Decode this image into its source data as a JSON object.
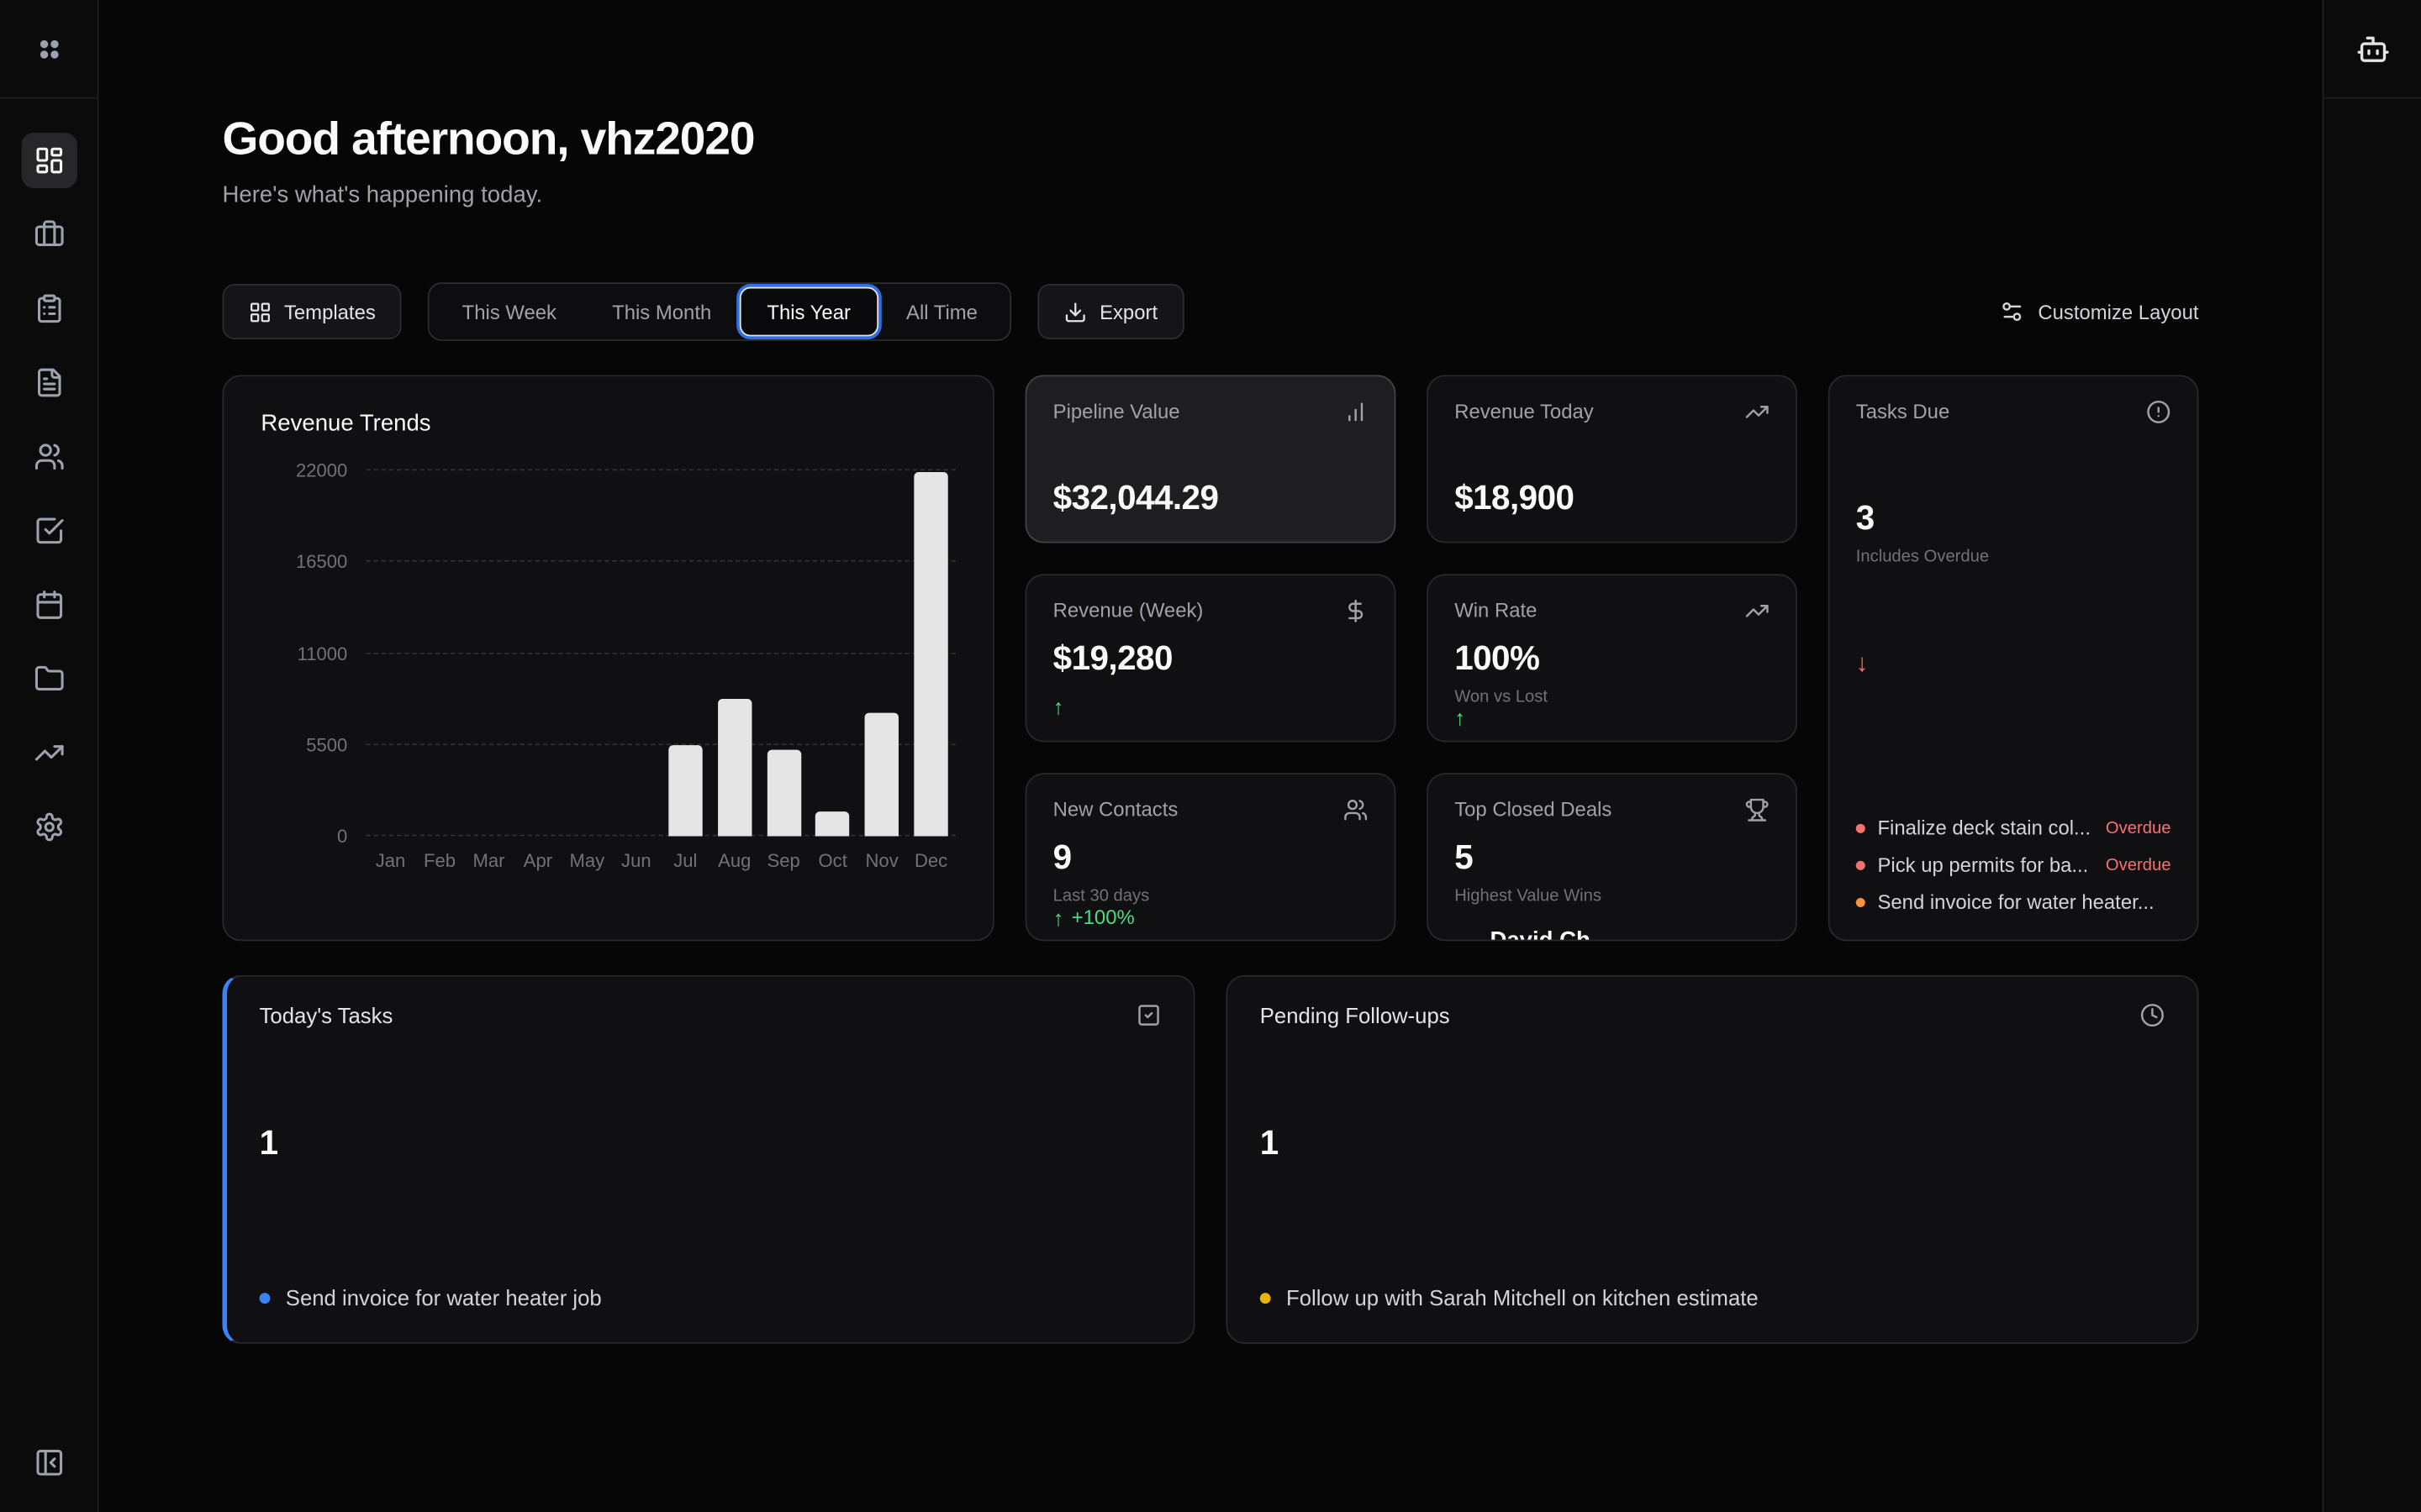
{
  "colors": {
    "accent_blue": "#3b82f6",
    "green": "#4ade80",
    "red": "#f87171",
    "orange": "#fb923c",
    "yellow": "#eab308",
    "bar": "#e5e5e5"
  },
  "sidebar": {
    "items": [
      {
        "icon": "layout-dashboard",
        "active": true
      },
      {
        "icon": "briefcase",
        "active": false
      },
      {
        "icon": "clipboard-list",
        "active": false
      },
      {
        "icon": "file-text",
        "active": false
      },
      {
        "icon": "users",
        "active": false
      },
      {
        "icon": "check-square",
        "active": false
      },
      {
        "icon": "calendar",
        "active": false
      },
      {
        "icon": "folder",
        "active": false
      },
      {
        "icon": "trending-up",
        "active": false
      },
      {
        "icon": "settings",
        "active": false
      }
    ],
    "footer_icon": "panel-left-collapse"
  },
  "right_rail": {
    "top_icon": "bot"
  },
  "header": {
    "greeting": "Good afternoon, vhz2020",
    "subtitle": "Here's what's happening today."
  },
  "toolbar": {
    "templates_label": "Templates",
    "ranges": [
      "This Week",
      "This Month",
      "This Year",
      "All Time"
    ],
    "selected_range": "This Year",
    "export_label": "Export",
    "customize_label": "Customize Layout"
  },
  "chart_data": {
    "type": "bar",
    "title": "Revenue Trends",
    "categories": [
      "Jan",
      "Feb",
      "Mar",
      "Apr",
      "May",
      "Jun",
      "Jul",
      "Aug",
      "Sep",
      "Oct",
      "Nov",
      "Dec"
    ],
    "values": [
      0,
      0,
      0,
      0,
      0,
      0,
      5500,
      8300,
      5200,
      1500,
      7400,
      21900
    ],
    "yticks": [
      0,
      5500,
      11000,
      16500,
      22000
    ],
    "ylim": [
      0,
      22000
    ],
    "xlabel": "",
    "ylabel": "",
    "grid": "dashed-horizontal",
    "legend": "none",
    "bar_color": "#e5e5e5"
  },
  "kpis": {
    "pipeline": {
      "title": "Pipeline Value",
      "icon": "bar-chart",
      "value": "$32,044.29"
    },
    "revenue_today": {
      "title": "Revenue Today",
      "icon": "trending-up",
      "value": "$18,900"
    },
    "revenue_week": {
      "title": "Revenue (Week)",
      "icon": "dollar-sign",
      "value": "$19,280",
      "delta_arrow": "up"
    },
    "win_rate": {
      "title": "Win Rate",
      "icon": "trending-up",
      "value": "100%",
      "subtitle": "Won vs Lost",
      "delta_arrow": "up"
    },
    "new_contacts": {
      "title": "New Contacts",
      "icon": "users",
      "value": "9",
      "subtitle": "Last 30 days",
      "delta": "+100%",
      "delta_arrow": "up"
    },
    "top_deals": {
      "title": "Top Closed Deals",
      "icon": "trophy",
      "value": "5",
      "subtitle": "Highest Value Wins",
      "clipped_entry": "David Ch"
    }
  },
  "tasks_due": {
    "title": "Tasks Due",
    "icon": "alert-circle",
    "value": "3",
    "subtitle": "Includes Overdue",
    "trend_arrow": "down",
    "items": [
      {
        "label": "Finalize deck stain col...",
        "badge": "Overdue",
        "dot": "#f87171"
      },
      {
        "label": "Pick up permits for ba...",
        "badge": "Overdue",
        "dot": "#f87171"
      },
      {
        "label": "Send invoice for water heater...",
        "badge": "",
        "dot": "#fb923c"
      }
    ]
  },
  "todays_tasks": {
    "title": "Today's Tasks",
    "icon": "check-square",
    "count": "1",
    "dot": "#3b82f6",
    "item": "Send invoice for water heater job"
  },
  "pending_followups": {
    "title": "Pending Follow-ups",
    "icon": "clock",
    "count": "1",
    "dot": "#eab308",
    "item": "Follow up with Sarah Mitchell on kitchen estimate"
  }
}
